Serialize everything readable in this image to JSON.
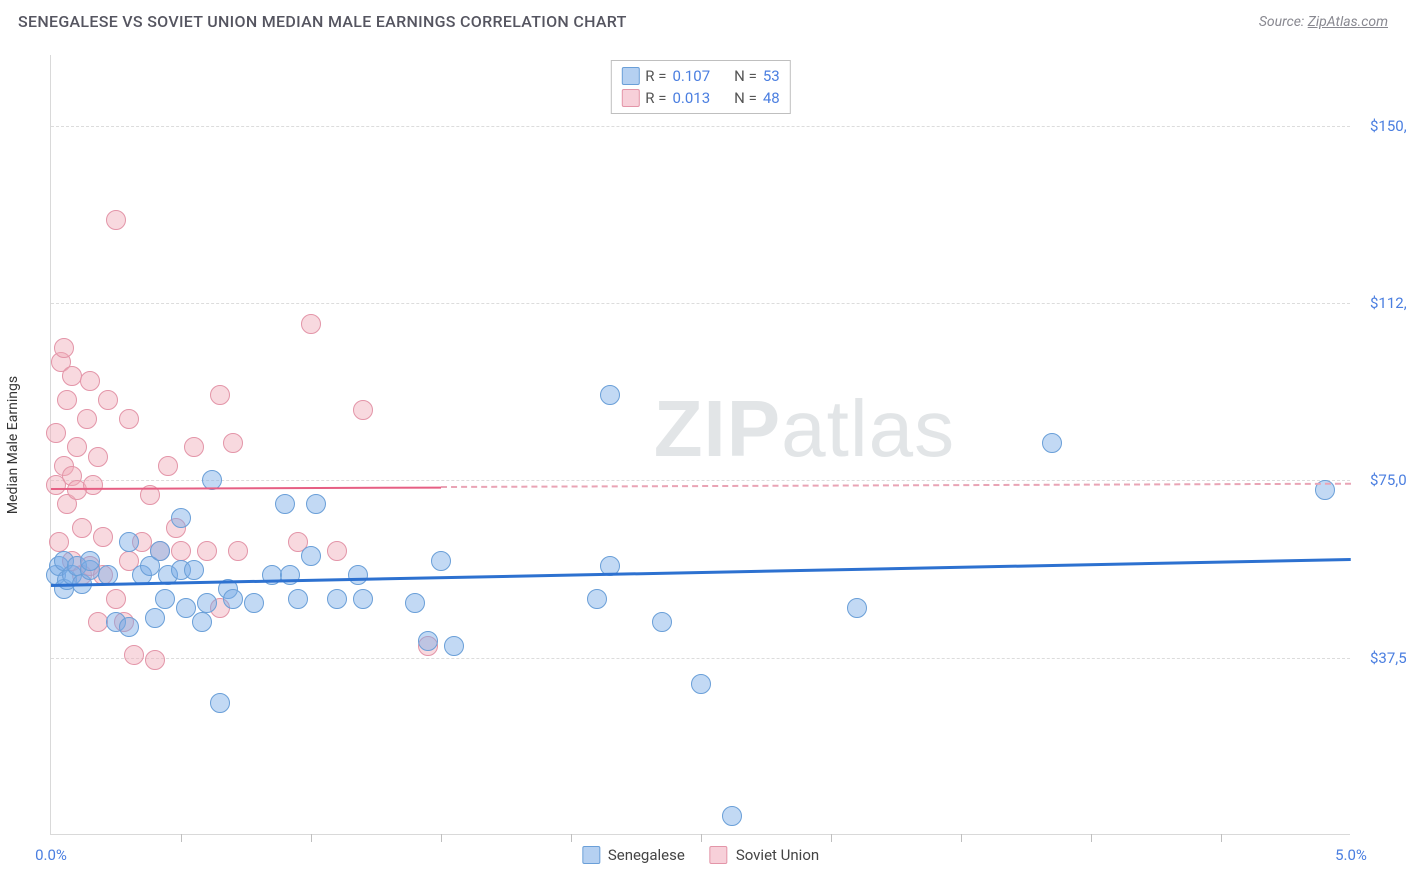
{
  "header": {
    "title": "SENEGALESE VS SOVIET UNION MEDIAN MALE EARNINGS CORRELATION CHART",
    "source_label": "Source:",
    "source_link": "ZipAtlas.com"
  },
  "watermark": {
    "zip": "ZIP",
    "atlas": "atlas"
  },
  "chart": {
    "type": "scatter",
    "ylabel": "Median Male Earnings",
    "background_color": "#ffffff",
    "grid_color": "#dcdcdc",
    "axis_color": "#d9d9d9",
    "value_text_color": "#4a7ee0",
    "xlim": [
      0.0,
      5.0
    ],
    "ylim": [
      0,
      165000
    ],
    "yticks": [
      {
        "v": 37500,
        "label": "$37,500"
      },
      {
        "v": 75000,
        "label": "$75,000"
      },
      {
        "v": 112500,
        "label": "$112,500"
      },
      {
        "v": 150000,
        "label": "$150,000"
      }
    ],
    "xticks_minor": [
      0.5,
      1.0,
      1.5,
      2.0,
      2.5,
      3.0,
      3.5,
      4.0,
      4.5
    ],
    "xtick_labels": [
      {
        "v": 0.0,
        "label": "0.0%"
      },
      {
        "v": 5.0,
        "label": "5.0%"
      }
    ],
    "marker_radius": 10,
    "series": {
      "senegalese": {
        "label": "Senegalese",
        "color_fill": "rgba(120,170,230,0.45)",
        "color_stroke": "#6a9fd8",
        "trend_color": "#2d71d0",
        "trend_width": 3,
        "trend_y_at_x0": 53000,
        "trend_y_at_xmax": 58500,
        "R": 0.107,
        "N": 53,
        "points": [
          [
            0.02,
            55000
          ],
          [
            0.03,
            57000
          ],
          [
            0.05,
            52000
          ],
          [
            0.05,
            58000
          ],
          [
            0.06,
            54000
          ],
          [
            0.08,
            55000
          ],
          [
            0.1,
            57000
          ],
          [
            0.12,
            53000
          ],
          [
            0.15,
            56000
          ],
          [
            0.15,
            58000
          ],
          [
            0.22,
            55000
          ],
          [
            0.25,
            45000
          ],
          [
            0.3,
            62000
          ],
          [
            0.3,
            44000
          ],
          [
            0.35,
            55000
          ],
          [
            0.38,
            57000
          ],
          [
            0.4,
            46000
          ],
          [
            0.42,
            60000
          ],
          [
            0.44,
            50000
          ],
          [
            0.45,
            55000
          ],
          [
            0.5,
            56000
          ],
          [
            0.5,
            67000
          ],
          [
            0.52,
            48000
          ],
          [
            0.55,
            56000
          ],
          [
            0.58,
            45000
          ],
          [
            0.6,
            49000
          ],
          [
            0.62,
            75000
          ],
          [
            0.65,
            28000
          ],
          [
            0.68,
            52000
          ],
          [
            0.7,
            50000
          ],
          [
            0.78,
            49000
          ],
          [
            0.85,
            55000
          ],
          [
            0.9,
            70000
          ],
          [
            0.92,
            55000
          ],
          [
            0.95,
            50000
          ],
          [
            1.0,
            59000
          ],
          [
            1.02,
            70000
          ],
          [
            1.1,
            50000
          ],
          [
            1.18,
            55000
          ],
          [
            1.2,
            50000
          ],
          [
            1.4,
            49000
          ],
          [
            1.45,
            41000
          ],
          [
            1.5,
            58000
          ],
          [
            1.55,
            40000
          ],
          [
            2.1,
            50000
          ],
          [
            2.15,
            93000
          ],
          [
            2.15,
            57000
          ],
          [
            2.35,
            45000
          ],
          [
            2.5,
            32000
          ],
          [
            2.62,
            4000
          ],
          [
            3.1,
            48000
          ],
          [
            3.85,
            83000
          ],
          [
            4.9,
            73000
          ]
        ]
      },
      "soviet": {
        "label": "Soviet Union",
        "color_fill": "rgba(240,170,185,0.45)",
        "color_stroke": "#e395a8",
        "trend_color": "#e65f84",
        "trend_dash_color": "#e9a4b5",
        "trend_width": 2.5,
        "trend_y_at_x0": 73500,
        "trend_y_at_xmax": 74500,
        "solid_until_x": 1.5,
        "R": 0.013,
        "N": 48,
        "points": [
          [
            0.02,
            74000
          ],
          [
            0.02,
            85000
          ],
          [
            0.03,
            62000
          ],
          [
            0.04,
            100000
          ],
          [
            0.05,
            78000
          ],
          [
            0.05,
            103000
          ],
          [
            0.06,
            70000
          ],
          [
            0.06,
            92000
          ],
          [
            0.08,
            76000
          ],
          [
            0.08,
            97000
          ],
          [
            0.08,
            58000
          ],
          [
            0.1,
            73000
          ],
          [
            0.1,
            82000
          ],
          [
            0.12,
            55000
          ],
          [
            0.12,
            65000
          ],
          [
            0.14,
            88000
          ],
          [
            0.15,
            96000
          ],
          [
            0.15,
            57000
          ],
          [
            0.16,
            74000
          ],
          [
            0.18,
            80000
          ],
          [
            0.18,
            45000
          ],
          [
            0.2,
            55000
          ],
          [
            0.2,
            63000
          ],
          [
            0.22,
            92000
          ],
          [
            0.25,
            50000
          ],
          [
            0.25,
            130000
          ],
          [
            0.28,
            45000
          ],
          [
            0.3,
            88000
          ],
          [
            0.3,
            58000
          ],
          [
            0.32,
            38000
          ],
          [
            0.35,
            62000
          ],
          [
            0.38,
            72000
          ],
          [
            0.4,
            37000
          ],
          [
            0.42,
            60000
          ],
          [
            0.45,
            78000
          ],
          [
            0.48,
            65000
          ],
          [
            0.5,
            60000
          ],
          [
            0.55,
            82000
          ],
          [
            0.6,
            60000
          ],
          [
            0.65,
            93000
          ],
          [
            0.65,
            48000
          ],
          [
            0.7,
            83000
          ],
          [
            0.72,
            60000
          ],
          [
            0.95,
            62000
          ],
          [
            1.0,
            108000
          ],
          [
            1.1,
            60000
          ],
          [
            1.2,
            90000
          ],
          [
            1.45,
            40000
          ]
        ]
      }
    },
    "legend_top": {
      "rows": [
        {
          "swatch": "blue",
          "R": "0.107",
          "N": "53"
        },
        {
          "swatch": "pink",
          "R": "0.013",
          "N": "48"
        }
      ],
      "r_label": "R =",
      "n_label": "N ="
    },
    "legend_bottom": {
      "items": [
        {
          "swatch": "blue",
          "label": "Senegalese"
        },
        {
          "swatch": "pink",
          "label": "Soviet Union"
        }
      ]
    }
  }
}
